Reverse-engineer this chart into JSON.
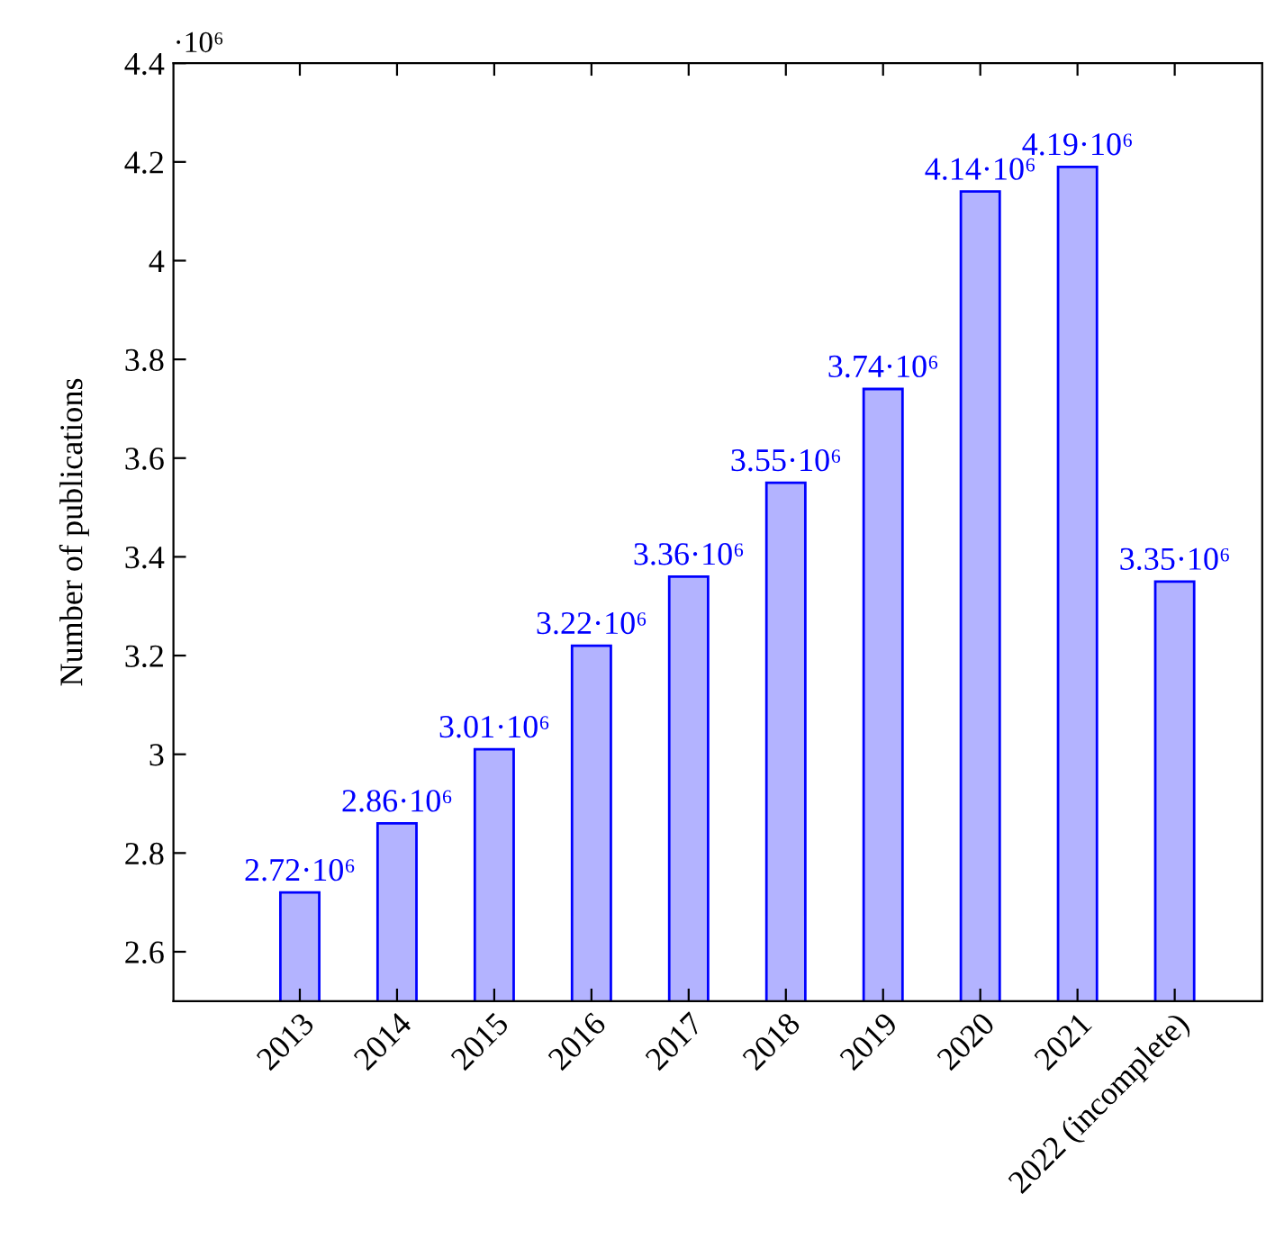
{
  "chart_data": {
    "type": "bar",
    "ylabel": "Number of publications",
    "categories": [
      "2013",
      "2014",
      "2015",
      "2016",
      "2017",
      "2018",
      "2019",
      "2020",
      "2021",
      "2022 (incomplete)"
    ],
    "values": [
      2.72,
      2.86,
      3.01,
      3.22,
      3.36,
      3.55,
      3.74,
      4.14,
      4.19,
      3.35
    ],
    "color": "#b3b3ff",
    "ylim": [
      2.5,
      4.4
    ],
    "yticks": [
      2.6,
      2.8,
      3,
      3.2,
      3.4,
      3.6,
      3.8,
      4,
      4.2,
      4.4
    ],
    "annotations": [
      "·10⁶",
      {
        "text": "2.72·10⁶",
        "x": "2013",
        "y": 2.72
      },
      {
        "text": "2.86·10⁶",
        "x": "2014",
        "y": 2.86
      },
      {
        "text": "3.01·10⁶",
        "x": "2015",
        "y": 3.01
      },
      {
        "text": "3.22·10⁶",
        "x": "2016",
        "y": 3.22
      },
      {
        "text": "3.36·10⁶",
        "x": "2017",
        "y": 3.36
      },
      {
        "text": "3.55·10⁶",
        "x": "2018",
        "y": 3.55
      },
      {
        "text": "3.74·10⁶",
        "x": "2019",
        "y": 3.74
      },
      {
        "text": "4.14·10⁶",
        "x": "2020",
        "y": 4.14
      },
      {
        "text": "4.19·10⁶",
        "x": "2021",
        "y": 4.19
      },
      {
        "text": "3.35·10⁶",
        "x": "2022 (incomplete)",
        "y": 3.35
      }
    ],
    "grid": false,
    "legend": false
  }
}
